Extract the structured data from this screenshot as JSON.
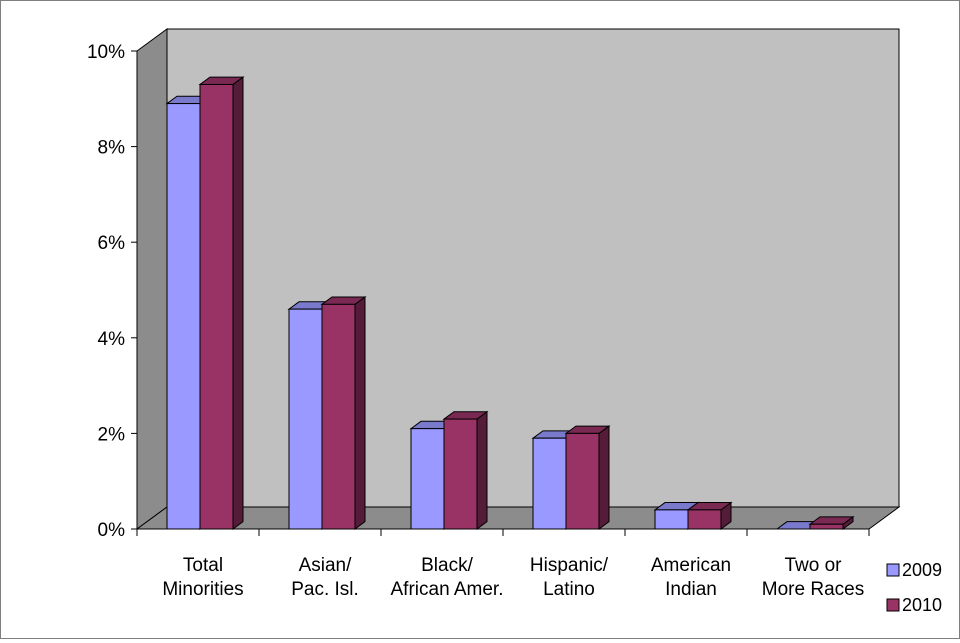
{
  "chart_data": {
    "type": "bar",
    "title": "",
    "xlabel": "",
    "ylabel": "",
    "categories": [
      [
        "Total",
        "Minorities"
      ],
      [
        "Asian/",
        "Pac. Isl."
      ],
      [
        "Black/",
        "African Amer."
      ],
      [
        "Hispanic/",
        "Latino"
      ],
      [
        "American",
        "Indian"
      ],
      [
        "Two or",
        "More Races"
      ]
    ],
    "series": [
      {
        "name": "2009",
        "values": [
          8.9,
          4.6,
          2.1,
          1.9,
          0.4,
          0.0
        ],
        "color": "#9999ff"
      },
      {
        "name": "2010",
        "values": [
          9.3,
          4.7,
          2.3,
          2.0,
          0.4,
          0.1
        ],
        "color": "#993366"
      }
    ],
    "ylim": [
      0,
      10
    ],
    "yticks": [
      0,
      2,
      4,
      6,
      8,
      10
    ],
    "ytick_suffix": "%",
    "grid": false,
    "legend_position": "right",
    "style": "3d-clustered-column",
    "wall_color": "#c0c0c0"
  }
}
